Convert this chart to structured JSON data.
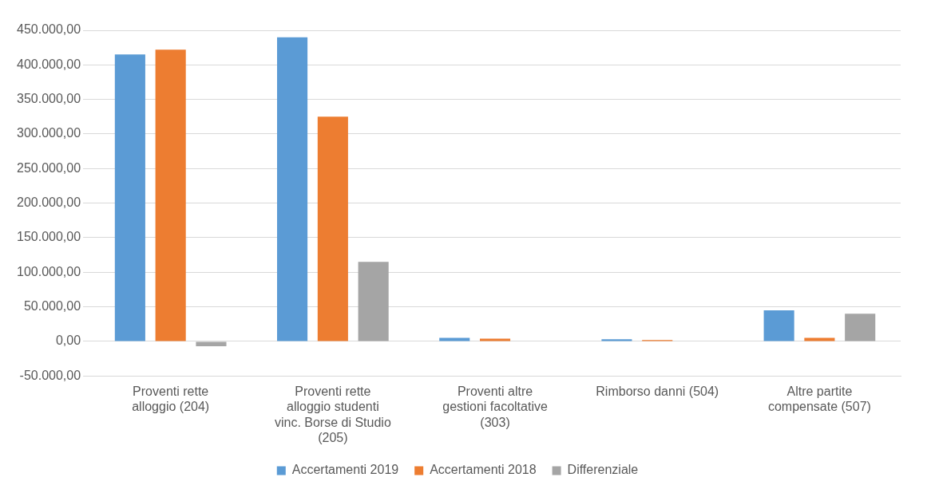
{
  "chart_data": {
    "type": "bar",
    "categories": [
      "Proventi rette alloggio (204)",
      "Proventi rette alloggio studenti vinc. Borse di Studio (205)",
      "Proventi altre gestioni facoltative (303)",
      "Rimborso danni (504)",
      "Altre partite compensate (507)"
    ],
    "series": [
      {
        "name": "Accertamenti 2019",
        "color": "#5b9bd5",
        "values": [
          415000,
          440000,
          5000,
          3000,
          45000
        ]
      },
      {
        "name": "Accertamenti 2018",
        "color": "#ed7d31",
        "values": [
          422000,
          325000,
          4000,
          2000,
          5000
        ]
      },
      {
        "name": "Differenziale",
        "color": "#a5a5a5",
        "values": [
          -7000,
          115000,
          null,
          null,
          40000
        ]
      }
    ],
    "ylim": [
      -50000,
      450000
    ],
    "yticks": [
      {
        "value": -50000,
        "label": "-50.000,00"
      },
      {
        "value": 0,
        "label": "0,00"
      },
      {
        "value": 50000,
        "label": "50.000,00"
      },
      {
        "value": 100000,
        "label": "100.000,00"
      },
      {
        "value": 150000,
        "label": "150.000,00"
      },
      {
        "value": 200000,
        "label": "200.000,00"
      },
      {
        "value": 250000,
        "label": "250.000,00"
      },
      {
        "value": 300000,
        "label": "300.000,00"
      },
      {
        "value": 350000,
        "label": "350.000,00"
      },
      {
        "value": 400000,
        "label": "400.000,00"
      },
      {
        "value": 450000,
        "label": "450.000,00"
      }
    ],
    "grid": "y",
    "legend": "bottom"
  }
}
